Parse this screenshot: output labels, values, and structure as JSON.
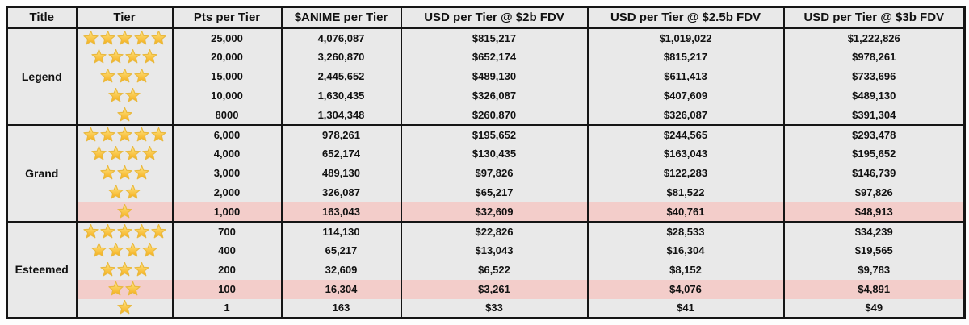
{
  "chart_data": {
    "type": "table",
    "headers": [
      "Title",
      "Tier",
      "Pts per Tier",
      "$ANIME per Tier",
      "USD per Tier @ $2b FDV",
      "USD per Tier @ $2.5b FDV",
      "USD per Tier @ $3b FDV"
    ],
    "groups": [
      {
        "title": "Legend",
        "rows": [
          {
            "stars": 5,
            "pts": "25,000",
            "anime": "4,076,087",
            "usd_2b": "$815,217",
            "usd_2_5b": "$1,019,022",
            "usd_3b": "$1,222,826",
            "highlight": false
          },
          {
            "stars": 4,
            "pts": "20,000",
            "anime": "3,260,870",
            "usd_2b": "$652,174",
            "usd_2_5b": "$815,217",
            "usd_3b": "$978,261",
            "highlight": false
          },
          {
            "stars": 3,
            "pts": "15,000",
            "anime": "2,445,652",
            "usd_2b": "$489,130",
            "usd_2_5b": "$611,413",
            "usd_3b": "$733,696",
            "highlight": false
          },
          {
            "stars": 2,
            "pts": "10,000",
            "anime": "1,630,435",
            "usd_2b": "$326,087",
            "usd_2_5b": "$407,609",
            "usd_3b": "$489,130",
            "highlight": false
          },
          {
            "stars": 1,
            "pts": "8000",
            "anime": "1,304,348",
            "usd_2b": "$260,870",
            "usd_2_5b": "$326,087",
            "usd_3b": "$391,304",
            "highlight": false
          }
        ]
      },
      {
        "title": "Grand",
        "rows": [
          {
            "stars": 5,
            "pts": "6,000",
            "anime": "978,261",
            "usd_2b": "$195,652",
            "usd_2_5b": "$244,565",
            "usd_3b": "$293,478",
            "highlight": false
          },
          {
            "stars": 4,
            "pts": "4,000",
            "anime": "652,174",
            "usd_2b": "$130,435",
            "usd_2_5b": "$163,043",
            "usd_3b": "$195,652",
            "highlight": false
          },
          {
            "stars": 3,
            "pts": "3,000",
            "anime": "489,130",
            "usd_2b": "$97,826",
            "usd_2_5b": "$122,283",
            "usd_3b": "$146,739",
            "highlight": false
          },
          {
            "stars": 2,
            "pts": "2,000",
            "anime": "326,087",
            "usd_2b": "$65,217",
            "usd_2_5b": "$81,522",
            "usd_3b": "$97,826",
            "highlight": false
          },
          {
            "stars": 1,
            "pts": "1,000",
            "anime": "163,043",
            "usd_2b": "$32,609",
            "usd_2_5b": "$40,761",
            "usd_3b": "$48,913",
            "highlight": true
          }
        ]
      },
      {
        "title": "Esteemed",
        "rows": [
          {
            "stars": 5,
            "pts": "700",
            "anime": "114,130",
            "usd_2b": "$22,826",
            "usd_2_5b": "$28,533",
            "usd_3b": "$34,239",
            "highlight": false
          },
          {
            "stars": 4,
            "pts": "400",
            "anime": "65,217",
            "usd_2b": "$13,043",
            "usd_2_5b": "$16,304",
            "usd_3b": "$19,565",
            "highlight": false
          },
          {
            "stars": 3,
            "pts": "200",
            "anime": "32,609",
            "usd_2b": "$6,522",
            "usd_2_5b": "$8,152",
            "usd_3b": "$9,783",
            "highlight": false
          },
          {
            "stars": 2,
            "pts": "100",
            "anime": "16,304",
            "usd_2b": "$3,261",
            "usd_2_5b": "$4,076",
            "usd_3b": "$4,891",
            "highlight": true
          },
          {
            "stars": 1,
            "pts": "1",
            "anime": "163",
            "usd_2b": "$33",
            "usd_2_5b": "$41",
            "usd_3b": "$49",
            "highlight": false
          }
        ]
      }
    ],
    "layout": {
      "grid": "black cell borders, no horizontal lines inside a title group",
      "legend_position": "none"
    }
  },
  "colors": {
    "table_background": "#e9e9e9",
    "highlight_row": "#f3cdca",
    "border": "#151515",
    "text": "#111111",
    "star_top": "#ffe789",
    "star_bottom": "#f5ad18",
    "star_outline": "#e9b93f"
  }
}
